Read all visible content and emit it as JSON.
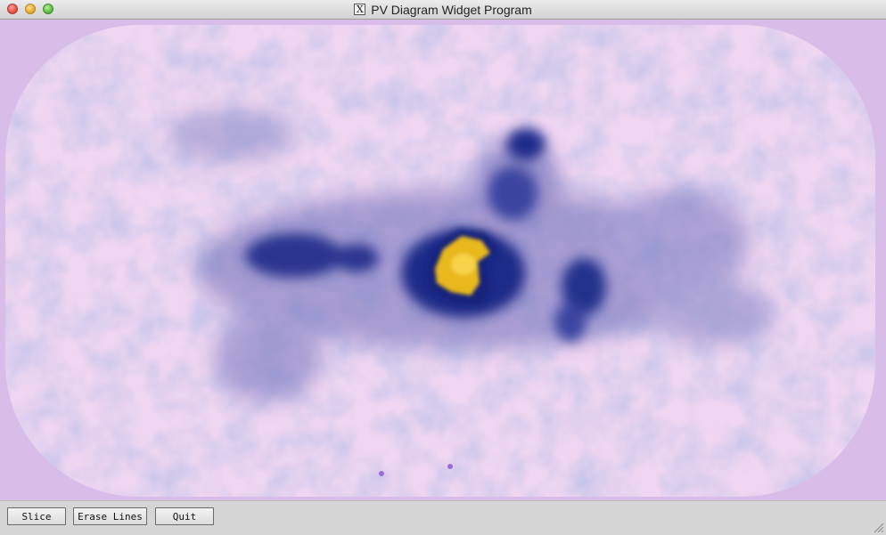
{
  "window": {
    "title": "PV Diagram Widget Program",
    "title_icon": "x11-icon",
    "title_icon_glyph": "X"
  },
  "canvas": {
    "background_color": "#d8bde8",
    "image_description_colors": [
      "#f0d8f2",
      "#8f8fcf",
      "#1f2f8f",
      "#f2c21f"
    ]
  },
  "buttons": {
    "slice": "Slice",
    "erase_lines": "Erase Lines",
    "quit": "Quit"
  }
}
